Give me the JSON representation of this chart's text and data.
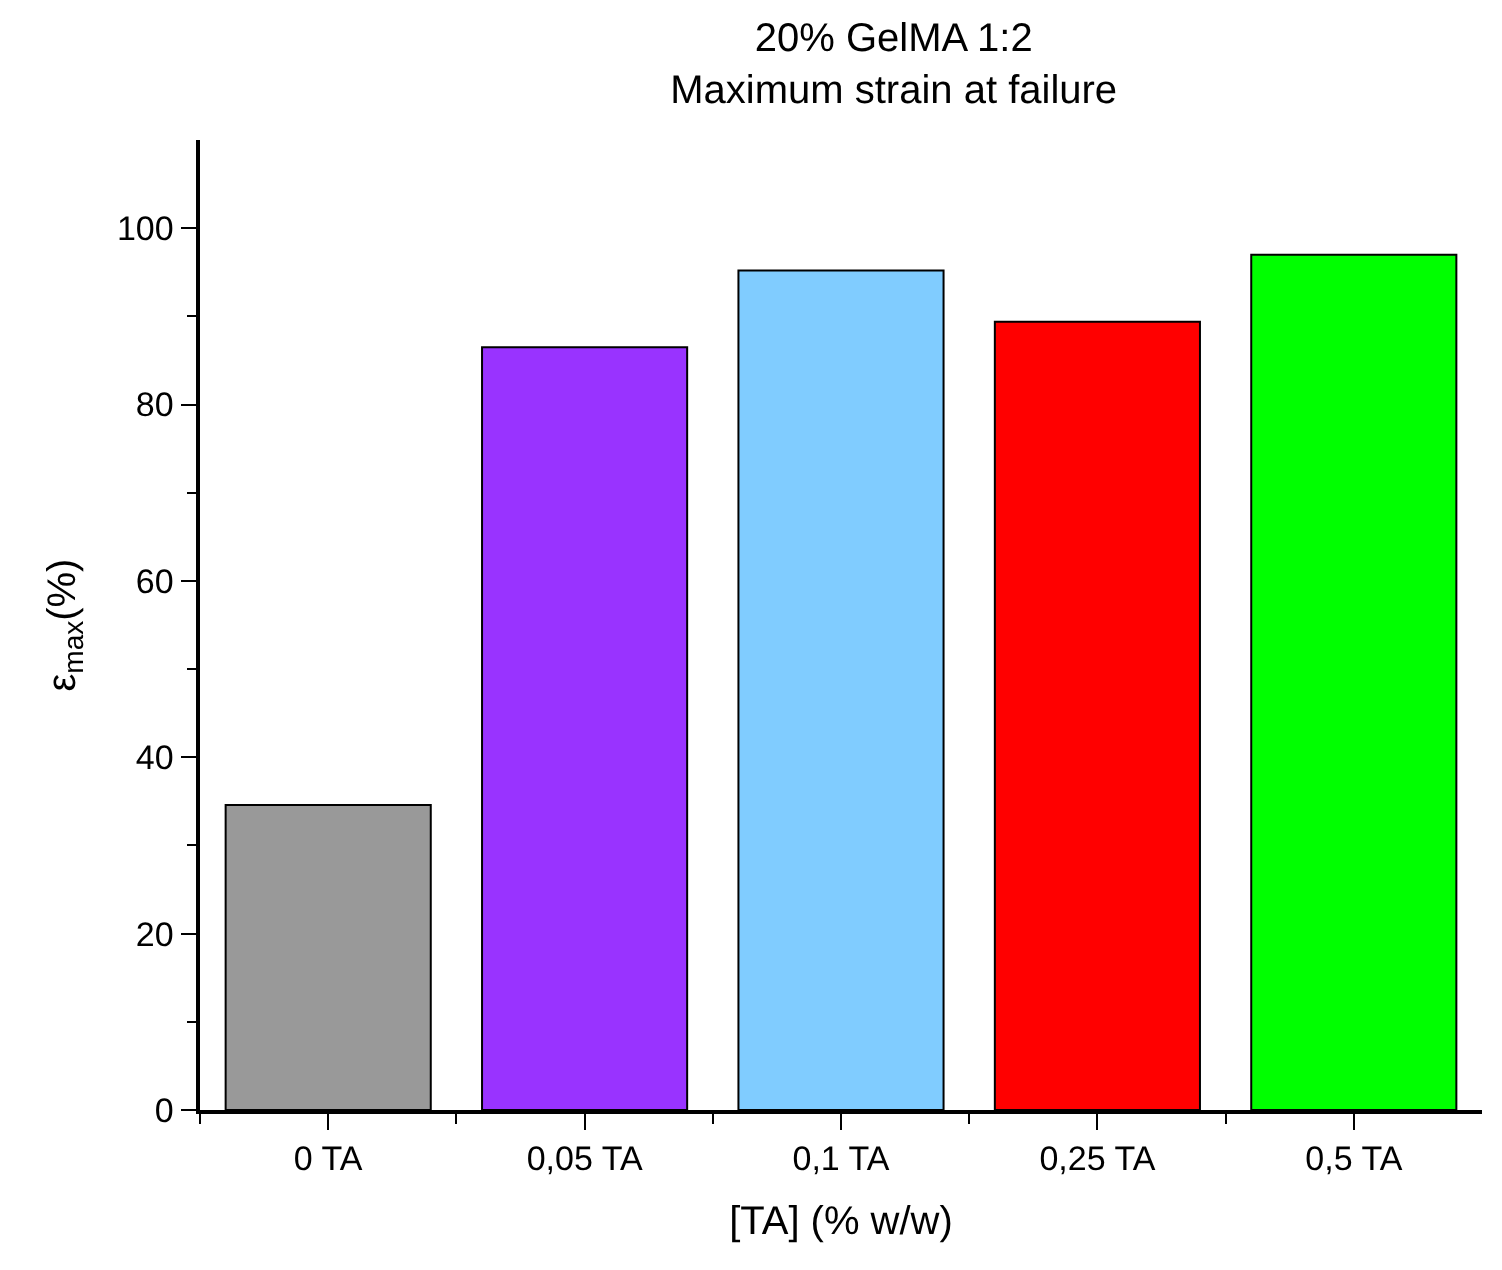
{
  "chart_data": {
    "type": "bar",
    "title": "20% GelMA 1:2\nMaximum strain at failure",
    "xlabel": "[TA] (% w/w)",
    "ylabel": "ε$_{max}$(%)",
    "categories": [
      "0 TA",
      "0,05 TA",
      "0,1 TA",
      "0,25 TA",
      "0,5 TA"
    ],
    "values": [
      34.6,
      86.5,
      95.2,
      89.4,
      97.0
    ],
    "colors": [
      "#999999",
      "#9933ff",
      "#80ccff",
      "#ff0000",
      "#00ff00"
    ],
    "ylim": [
      0,
      110
    ],
    "yticks": [
      0,
      {
        "value": 10,
        "label": null
      },
      20,
      {
        "value": 30,
        "label": null
      },
      40,
      {
        "value": 50,
        "label": null
      },
      60,
      {
        "value": 70,
        "label": null
      },
      80,
      {
        "value": 90,
        "label": null
      },
      100
    ],
    "legend": false
  }
}
